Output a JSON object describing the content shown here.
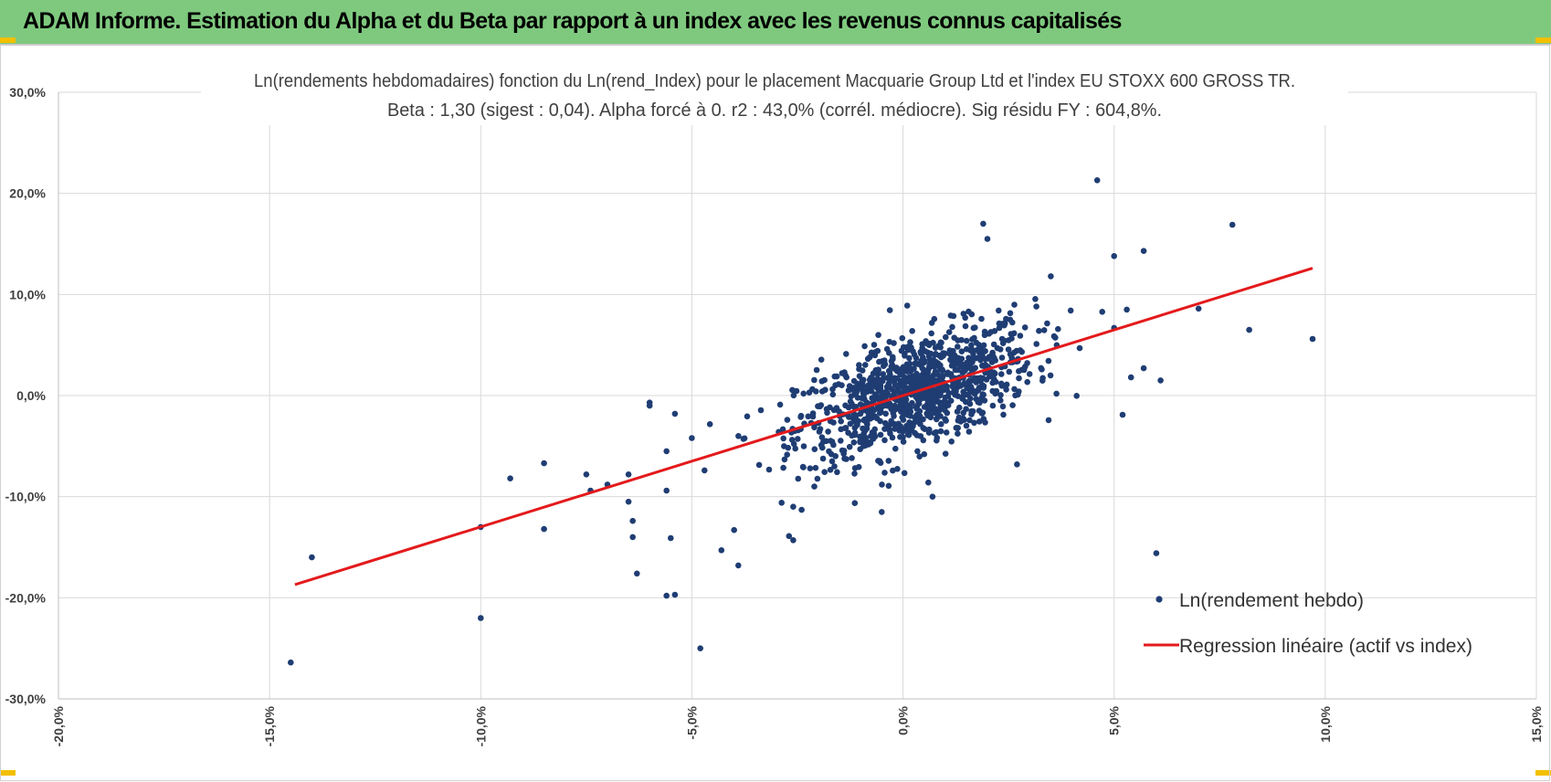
{
  "header": {
    "title": "ADAM Informe. Estimation du Alpha et du Beta par rapport à un index avec les revenus connus capitalisés"
  },
  "colors": {
    "header_bg": "#7fc97f",
    "points": "#1f3d73",
    "regression": "#e31a1c",
    "grid": "#d9d9d9",
    "corner_accent": "#f2c000"
  },
  "chart_data": {
    "type": "scatter",
    "title": "Ln(rendements hebdomadaires) fonction du Ln(rend_Index) pour le placement Macquarie Group Ltd et l'index EU STOXX 600 GROSS TR.",
    "subtitle": "Beta : 1,30 (sigest : 0,04). Alpha forcé à 0. r2 : 43,0% (corrél. médiocre). Sig résidu FY : 604,8%.",
    "xlabel": "",
    "ylabel": "",
    "xlim": [
      -0.2,
      0.15
    ],
    "ylim": [
      -0.3,
      0.3
    ],
    "x_tick_labels": [
      "-20,0%",
      "-15,0%",
      "-10,0%",
      "-5,0%",
      "0,0%",
      "5,0%",
      "10,0%",
      "15,0%"
    ],
    "y_tick_labels": [
      "30,0%",
      "20,0%",
      "10,0%",
      "0,0%",
      "-10,0%",
      "-20,0%",
      "-30,0%"
    ],
    "grid": true,
    "legend_position": "bottom-right",
    "series": [
      {
        "name": "Ln(rendement hebdo)",
        "marker": "dot",
        "outliers": [
          [
            -0.145,
            -0.264
          ],
          [
            -0.14,
            -0.16
          ],
          [
            -0.1,
            -0.22
          ],
          [
            -0.1,
            -0.13
          ],
          [
            -0.093,
            -0.082
          ],
          [
            -0.085,
            -0.067
          ],
          [
            -0.085,
            -0.132
          ],
          [
            -0.075,
            -0.078
          ],
          [
            -0.074,
            -0.094
          ],
          [
            -0.07,
            -0.088
          ],
          [
            -0.065,
            -0.078
          ],
          [
            -0.065,
            -0.105
          ],
          [
            -0.064,
            -0.124
          ],
          [
            -0.064,
            -0.14
          ],
          [
            -0.063,
            -0.176
          ],
          [
            -0.06,
            -0.007
          ],
          [
            -0.06,
            -0.01
          ],
          [
            -0.056,
            -0.055
          ],
          [
            -0.056,
            -0.094
          ],
          [
            -0.055,
            -0.141
          ],
          [
            -0.056,
            -0.198
          ],
          [
            -0.054,
            -0.018
          ],
          [
            -0.054,
            -0.197
          ],
          [
            -0.05,
            -0.042
          ],
          [
            -0.048,
            -0.25
          ],
          [
            -0.047,
            -0.074
          ],
          [
            -0.043,
            -0.153
          ],
          [
            -0.04,
            -0.133
          ],
          [
            -0.039,
            -0.168
          ],
          [
            -0.027,
            -0.139
          ],
          [
            -0.026,
            -0.143
          ],
          [
            -0.026,
            -0.11
          ],
          [
            -0.024,
            -0.113
          ],
          [
            -0.022,
            -0.072
          ],
          [
            -0.021,
            -0.09
          ],
          [
            -0.005,
            -0.088
          ],
          [
            0.001,
            0.089
          ],
          [
            0.006,
            -0.086
          ],
          [
            0.007,
            -0.1
          ],
          [
            0.019,
            0.17
          ],
          [
            0.02,
            0.155
          ],
          [
            0.027,
            -0.068
          ],
          [
            0.035,
            0.118
          ],
          [
            0.046,
            0.213
          ],
          [
            0.05,
            0.138
          ],
          [
            0.05,
            0.067
          ],
          [
            0.052,
            -0.019
          ],
          [
            0.053,
            0.085
          ],
          [
            0.054,
            0.018
          ],
          [
            0.057,
            0.143
          ],
          [
            0.057,
            0.027
          ],
          [
            0.06,
            -0.156
          ],
          [
            0.061,
            0.015
          ],
          [
            0.07,
            0.086
          ],
          [
            0.078,
            0.169
          ],
          [
            0.082,
            0.065
          ],
          [
            0.097,
            0.056
          ]
        ],
        "dense_cloud": {
          "count": 1050,
          "x_mean": 0.003,
          "x_sd": 0.014,
          "y_per_x": 1.3,
          "residual_sd": 0.027
        }
      },
      {
        "name": "Regression linéaire (actif vs index)",
        "type": "line",
        "slope": 1.3,
        "intercept": 0,
        "x": [
          -0.144,
          0.097
        ],
        "y": [
          -0.187,
          0.126
        ]
      }
    ]
  }
}
